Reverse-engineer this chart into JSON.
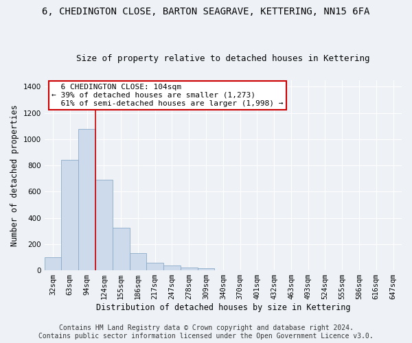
{
  "title": "6, CHEDINGTON CLOSE, BARTON SEAGRAVE, KETTERING, NN15 6FA",
  "subtitle": "Size of property relative to detached houses in Kettering",
  "xlabel": "Distribution of detached houses by size in Kettering",
  "ylabel": "Number of detached properties",
  "bar_color": "#ccdaeb",
  "bar_edge_color": "#8aaac8",
  "categories": [
    "32sqm",
    "63sqm",
    "94sqm",
    "124sqm",
    "155sqm",
    "186sqm",
    "217sqm",
    "247sqm",
    "278sqm",
    "309sqm",
    "340sqm",
    "370sqm",
    "401sqm",
    "432sqm",
    "463sqm",
    "493sqm",
    "524sqm",
    "555sqm",
    "586sqm",
    "616sqm",
    "647sqm"
  ],
  "values": [
    100,
    840,
    1080,
    690,
    325,
    130,
    60,
    35,
    20,
    15,
    0,
    0,
    0,
    0,
    0,
    0,
    0,
    0,
    0,
    0,
    0
  ],
  "ylim": [
    0,
    1450
  ],
  "yticks": [
    0,
    200,
    400,
    600,
    800,
    1000,
    1200,
    1400
  ],
  "property_line_x": 2.5,
  "annotation_text": "  6 CHEDINGTON CLOSE: 104sqm  \n← 39% of detached houses are smaller (1,273)\n  61% of semi-detached houses are larger (1,998) →",
  "annotation_box_color": "#ffffff",
  "annotation_box_edge_color": "#cc0000",
  "footer_line1": "Contains HM Land Registry data © Crown copyright and database right 2024.",
  "footer_line2": "Contains public sector information licensed under the Open Government Licence v3.0.",
  "background_color": "#eef2f7",
  "grid_color": "#ffffff",
  "title_fontsize": 10,
  "subtitle_fontsize": 9,
  "ylabel_fontsize": 8.5,
  "xlabel_fontsize": 8.5,
  "tick_fontsize": 7.5,
  "footer_fontsize": 7
}
